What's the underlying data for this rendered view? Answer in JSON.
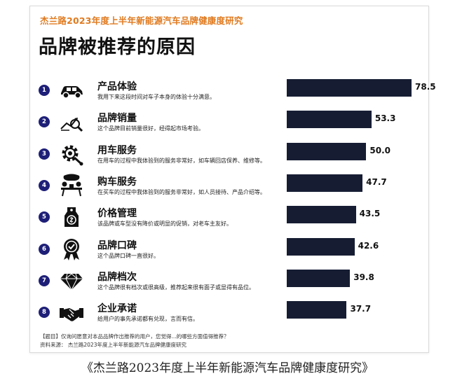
{
  "header": {
    "super_title": "杰兰路2023年度上半年新能源汽车品牌健康度研究",
    "title": "品牌被推荐的原因"
  },
  "footer": {
    "question": "【题目】仅询问愿意对本品品牌作出推荐的用户，您觉得...的哪些方面值得推荐？",
    "source": "资料来源： 杰兰路2023年度上半年新能源汽车品牌健康度研究"
  },
  "caption": "《杰兰路2023年度上半年新能源汽车品牌健康度研究》",
  "colors": {
    "bar": "#161d33",
    "badge": "#1e1f77",
    "accent": "#e07a1f"
  },
  "chart_data": {
    "type": "bar",
    "orientation": "horizontal",
    "title": "品牌被推荐的原因",
    "xlabel": "",
    "ylabel": "",
    "categories": [
      "产品体验",
      "品牌销量",
      "用车服务",
      "购车服务",
      "价格管理",
      "品牌口碑",
      "品牌档次",
      "企业承诺"
    ],
    "values": [
      78.5,
      53.3,
      50.0,
      47.7,
      43.5,
      42.6,
      39.8,
      37.7
    ],
    "value_labels": [
      "78.5",
      "53.3",
      "50.0",
      "47.7",
      "43.5",
      "42.6",
      "39.8",
      "37.7"
    ],
    "numbers": [
      "1",
      "2",
      "3",
      "4",
      "5",
      "6",
      "7",
      "8"
    ],
    "descriptions": [
      "我用下来这段时间对车子本身的体验十分满意。",
      "这个品牌目前销量很好，经得起市场考验。",
      "在用车的过程中我体验到的服务非常好，如车辆回店保养、维修等。",
      "在买车的过程中我体验到的服务非常好，如人员接待、产品介绍等。",
      "该品牌或车型没有降价或明显的促销，对老车主友好。",
      "这个品牌口碑一直很好。",
      "这个品牌很有档次或很高级，推荐起来很有面子或显得有品位。",
      "给用户的事先承诺都有兑现，言而有信。"
    ],
    "icons": [
      "car-icon",
      "sales-chart-icon",
      "gear-wrench-icon",
      "service-desk-icon",
      "price-tag-icon",
      "award-medal-icon",
      "diamond-icon",
      "handshake-icon"
    ],
    "xlim": [
      0,
      78.5
    ]
  }
}
